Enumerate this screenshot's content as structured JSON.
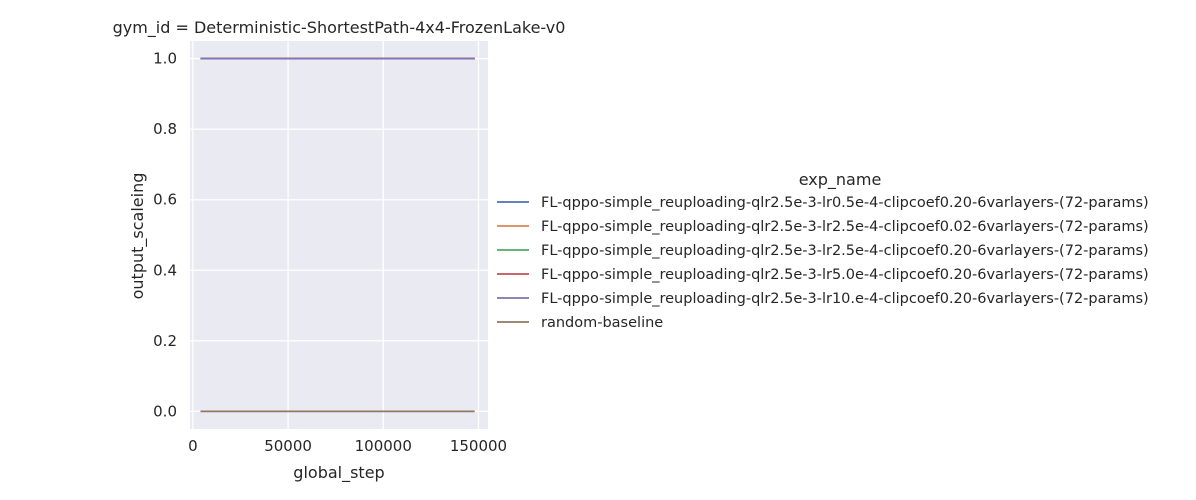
{
  "chart_data": {
    "type": "line",
    "title": "gym_id = Deterministic-ShortestPath-4x4-FrozenLake-v0",
    "xlabel": "global_step",
    "ylabel": "output_scaleing",
    "xlim": [
      -1500,
      155000
    ],
    "ylim": [
      -0.05,
      1.05
    ],
    "xticks": [
      0,
      50000,
      100000,
      150000
    ],
    "xtick_labels": [
      "0",
      "50000",
      "100000",
      "150000"
    ],
    "yticks": [
      0.0,
      0.2,
      0.4,
      0.6,
      0.8,
      1.0
    ],
    "ytick_labels": [
      "0.0",
      "0.2",
      "0.4",
      "0.6",
      "0.8",
      "1.0"
    ],
    "grid": true,
    "legend_title": "exp_name",
    "legend_position": "right",
    "series": [
      {
        "name": "FL-qppo-simple_reuploading-qlr2.5e-3-lr0.5e-4-clipcoef0.20-6varlayers-(72-params)",
        "color": "#4c72b0",
        "x": [
          4000,
          148000
        ],
        "y": [
          1.0,
          1.0
        ]
      },
      {
        "name": "FL-qppo-simple_reuploading-qlr2.5e-3-lr2.5e-4-clipcoef0.02-6varlayers-(72-params)",
        "color": "#dd8452",
        "x": [
          4000,
          148000
        ],
        "y": [
          1.0,
          1.0
        ]
      },
      {
        "name": "FL-qppo-simple_reuploading-qlr2.5e-3-lr2.5e-4-clipcoef0.20-6varlayers-(72-params)",
        "color": "#55a868",
        "x": [
          4000,
          148000
        ],
        "y": [
          1.0,
          1.0
        ]
      },
      {
        "name": "FL-qppo-simple_reuploading-qlr2.5e-3-lr5.0e-4-clipcoef0.20-6varlayers-(72-params)",
        "color": "#c44e52",
        "x": [
          4000,
          148000
        ],
        "y": [
          1.0,
          1.0
        ]
      },
      {
        "name": "FL-qppo-simple_reuploading-qlr2.5e-3-lr10.e-4-clipcoef0.20-6varlayers-(72-params)",
        "color": "#8172b3",
        "x": [
          4000,
          148000
        ],
        "y": [
          1.0,
          1.0
        ]
      },
      {
        "name": "random-baseline",
        "color": "#937860",
        "x": [
          4000,
          148000
        ],
        "y": [
          0.0,
          0.0
        ]
      }
    ]
  }
}
